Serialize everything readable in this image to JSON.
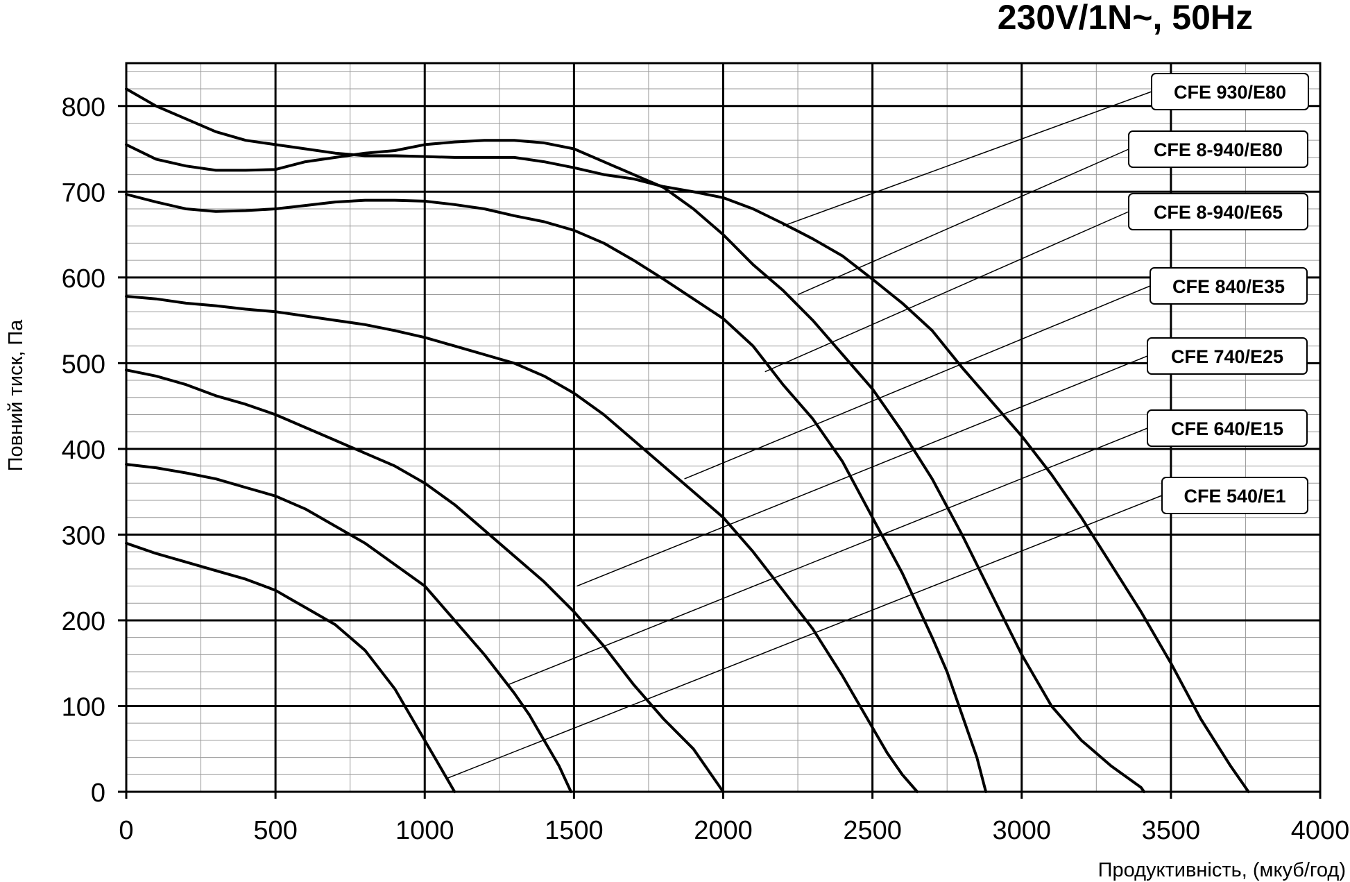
{
  "chart_data": {
    "type": "line",
    "title": "230V/1N~, 50Hz",
    "xlabel": "Продуктивність, (мкуб/год)",
    "ylabel": "Повний тиск, Па",
    "xlim": [
      0,
      4000
    ],
    "ylim": [
      0,
      850
    ],
    "x_ticks": [
      0,
      500,
      1000,
      1500,
      2000,
      2500,
      3000,
      3500,
      4000
    ],
    "y_ticks": [
      0,
      100,
      200,
      300,
      400,
      500,
      600,
      700,
      800
    ],
    "x_tick_labels": [
      "0",
      "500",
      "1000",
      "1500",
      "2000",
      "2500",
      "3000",
      "3500",
      "4000"
    ],
    "y_tick_labels": [
      "0",
      "100",
      "200",
      "300",
      "400",
      "500",
      "600",
      "700",
      "800"
    ],
    "grid": true,
    "legend_position": "right, labels connected to curves by leader lines",
    "series": [
      {
        "name": "CFE 930/E80",
        "label_anchor": [
          2200,
          660
        ],
        "points": [
          [
            0,
            820
          ],
          [
            100,
            800
          ],
          [
            200,
            785
          ],
          [
            300,
            770
          ],
          [
            400,
            760
          ],
          [
            500,
            755
          ],
          [
            600,
            750
          ],
          [
            700,
            745
          ],
          [
            800,
            742
          ],
          [
            900,
            742
          ],
          [
            1000,
            741
          ],
          [
            1100,
            740
          ],
          [
            1200,
            740
          ],
          [
            1300,
            740
          ],
          [
            1400,
            735
          ],
          [
            1500,
            728
          ],
          [
            1600,
            720
          ],
          [
            1700,
            715
          ],
          [
            1800,
            706
          ],
          [
            1900,
            700
          ],
          [
            2000,
            693
          ],
          [
            2100,
            680
          ],
          [
            2200,
            663
          ],
          [
            2300,
            645
          ],
          [
            2400,
            625
          ],
          [
            2500,
            598
          ],
          [
            2600,
            570
          ],
          [
            2700,
            538
          ],
          [
            2800,
            495
          ],
          [
            2900,
            455
          ],
          [
            3000,
            415
          ],
          [
            3100,
            370
          ],
          [
            3200,
            320
          ],
          [
            3300,
            265
          ],
          [
            3400,
            210
          ],
          [
            3500,
            150
          ],
          [
            3600,
            85
          ],
          [
            3700,
            30
          ],
          [
            3760,
            0
          ]
        ]
      },
      {
        "name": "CFE 8-940/E80",
        "label_anchor": [
          2250,
          580
        ],
        "points": [
          [
            0,
            755
          ],
          [
            100,
            738
          ],
          [
            200,
            730
          ],
          [
            300,
            725
          ],
          [
            400,
            725
          ],
          [
            500,
            726
          ],
          [
            600,
            735
          ],
          [
            700,
            740
          ],
          [
            800,
            745
          ],
          [
            900,
            748
          ],
          [
            1000,
            755
          ],
          [
            1100,
            758
          ],
          [
            1200,
            760
          ],
          [
            1300,
            760
          ],
          [
            1400,
            757
          ],
          [
            1500,
            750
          ],
          [
            1600,
            735
          ],
          [
            1700,
            720
          ],
          [
            1800,
            705
          ],
          [
            1900,
            680
          ],
          [
            2000,
            650
          ],
          [
            2100,
            615
          ],
          [
            2200,
            585
          ],
          [
            2300,
            550
          ],
          [
            2400,
            510
          ],
          [
            2500,
            470
          ],
          [
            2600,
            420
          ],
          [
            2700,
            365
          ],
          [
            2800,
            300
          ],
          [
            2900,
            230
          ],
          [
            3000,
            160
          ],
          [
            3100,
            100
          ],
          [
            3200,
            60
          ],
          [
            3300,
            30
          ],
          [
            3400,
            5
          ],
          [
            3410,
            0
          ]
        ]
      },
      {
        "name": "CFE 8-940/E65",
        "label_anchor": [
          2140,
          490
        ],
        "points": [
          [
            0,
            697
          ],
          [
            100,
            688
          ],
          [
            200,
            680
          ],
          [
            300,
            677
          ],
          [
            400,
            678
          ],
          [
            500,
            680
          ],
          [
            600,
            684
          ],
          [
            700,
            688
          ],
          [
            800,
            690
          ],
          [
            900,
            690
          ],
          [
            1000,
            689
          ],
          [
            1100,
            685
          ],
          [
            1200,
            680
          ],
          [
            1300,
            672
          ],
          [
            1400,
            665
          ],
          [
            1500,
            655
          ],
          [
            1600,
            640
          ],
          [
            1700,
            620
          ],
          [
            1800,
            598
          ],
          [
            1900,
            575
          ],
          [
            2000,
            552
          ],
          [
            2100,
            520
          ],
          [
            2200,
            475
          ],
          [
            2300,
            435
          ],
          [
            2400,
            385
          ],
          [
            2500,
            320
          ],
          [
            2600,
            255
          ],
          [
            2700,
            180
          ],
          [
            2750,
            140
          ],
          [
            2800,
            90
          ],
          [
            2850,
            40
          ],
          [
            2880,
            0
          ]
        ]
      },
      {
        "name": "CFE 840/E35",
        "label_anchor": [
          1870,
          365
        ],
        "points": [
          [
            0,
            578
          ],
          [
            100,
            575
          ],
          [
            200,
            570
          ],
          [
            300,
            567
          ],
          [
            400,
            563
          ],
          [
            500,
            560
          ],
          [
            600,
            555
          ],
          [
            700,
            550
          ],
          [
            800,
            545
          ],
          [
            900,
            538
          ],
          [
            1000,
            530
          ],
          [
            1100,
            520
          ],
          [
            1200,
            510
          ],
          [
            1300,
            500
          ],
          [
            1400,
            485
          ],
          [
            1500,
            465
          ],
          [
            1600,
            440
          ],
          [
            1700,
            410
          ],
          [
            1800,
            380
          ],
          [
            1900,
            350
          ],
          [
            2000,
            320
          ],
          [
            2100,
            280
          ],
          [
            2200,
            235
          ],
          [
            2300,
            190
          ],
          [
            2400,
            135
          ],
          [
            2500,
            75
          ],
          [
            2550,
            45
          ],
          [
            2600,
            20
          ],
          [
            2650,
            0
          ]
        ]
      },
      {
        "name": "CFE 740/E25",
        "label_anchor": [
          1510,
          240
        ],
        "points": [
          [
            0,
            492
          ],
          [
            100,
            485
          ],
          [
            200,
            475
          ],
          [
            300,
            462
          ],
          [
            400,
            452
          ],
          [
            500,
            440
          ],
          [
            600,
            425
          ],
          [
            700,
            410
          ],
          [
            800,
            395
          ],
          [
            900,
            380
          ],
          [
            1000,
            360
          ],
          [
            1100,
            335
          ],
          [
            1200,
            305
          ],
          [
            1300,
            275
          ],
          [
            1400,
            245
          ],
          [
            1500,
            210
          ],
          [
            1600,
            170
          ],
          [
            1700,
            125
          ],
          [
            1800,
            85
          ],
          [
            1900,
            50
          ],
          [
            1950,
            25
          ],
          [
            2000,
            0
          ]
        ]
      },
      {
        "name": "CFE 640/E15",
        "label_anchor": [
          1280,
          125
        ],
        "points": [
          [
            0,
            382
          ],
          [
            100,
            378
          ],
          [
            200,
            372
          ],
          [
            300,
            365
          ],
          [
            400,
            355
          ],
          [
            500,
            345
          ],
          [
            600,
            330
          ],
          [
            700,
            310
          ],
          [
            800,
            290
          ],
          [
            900,
            265
          ],
          [
            1000,
            240
          ],
          [
            1100,
            200
          ],
          [
            1200,
            160
          ],
          [
            1300,
            115
          ],
          [
            1350,
            90
          ],
          [
            1400,
            60
          ],
          [
            1450,
            30
          ],
          [
            1490,
            0
          ]
        ]
      },
      {
        "name": "CFE 540/E1",
        "label_anchor": [
          1070,
          15
        ],
        "points": [
          [
            0,
            290
          ],
          [
            100,
            278
          ],
          [
            200,
            268
          ],
          [
            300,
            258
          ],
          [
            400,
            248
          ],
          [
            500,
            235
          ],
          [
            550,
            225
          ],
          [
            600,
            215
          ],
          [
            700,
            195
          ],
          [
            800,
            165
          ],
          [
            900,
            120
          ],
          [
            950,
            90
          ],
          [
            1000,
            60
          ],
          [
            1050,
            30
          ],
          [
            1100,
            0
          ]
        ]
      }
    ]
  }
}
